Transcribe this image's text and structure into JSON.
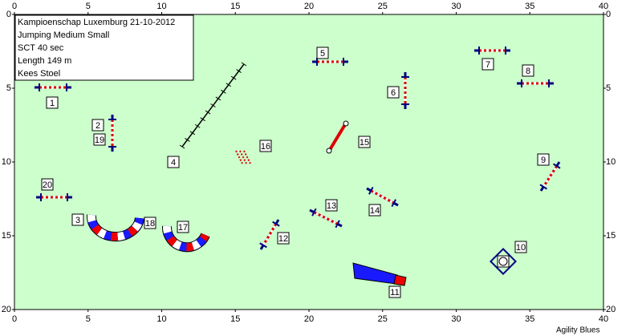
{
  "header": {
    "lines": [
      "Kampioenschap Luxemburg 21-10-2012",
      "Jumping Medium Small",
      "SCT 40 sec",
      "Length 149 m",
      "Kees Stoel"
    ]
  },
  "axes": {
    "xticks": [
      0,
      5,
      10,
      15,
      20,
      25,
      30,
      35,
      40
    ],
    "yticks": [
      0,
      5,
      10,
      15,
      20
    ],
    "xlim": [
      0,
      40
    ],
    "ylim": [
      0,
      20
    ]
  },
  "obstacles": [
    1,
    2,
    19,
    20,
    3,
    18,
    17,
    4,
    16,
    5,
    6,
    7,
    8,
    9,
    10,
    11,
    12,
    13,
    14,
    15
  ],
  "footer": "Agility Blues"
}
